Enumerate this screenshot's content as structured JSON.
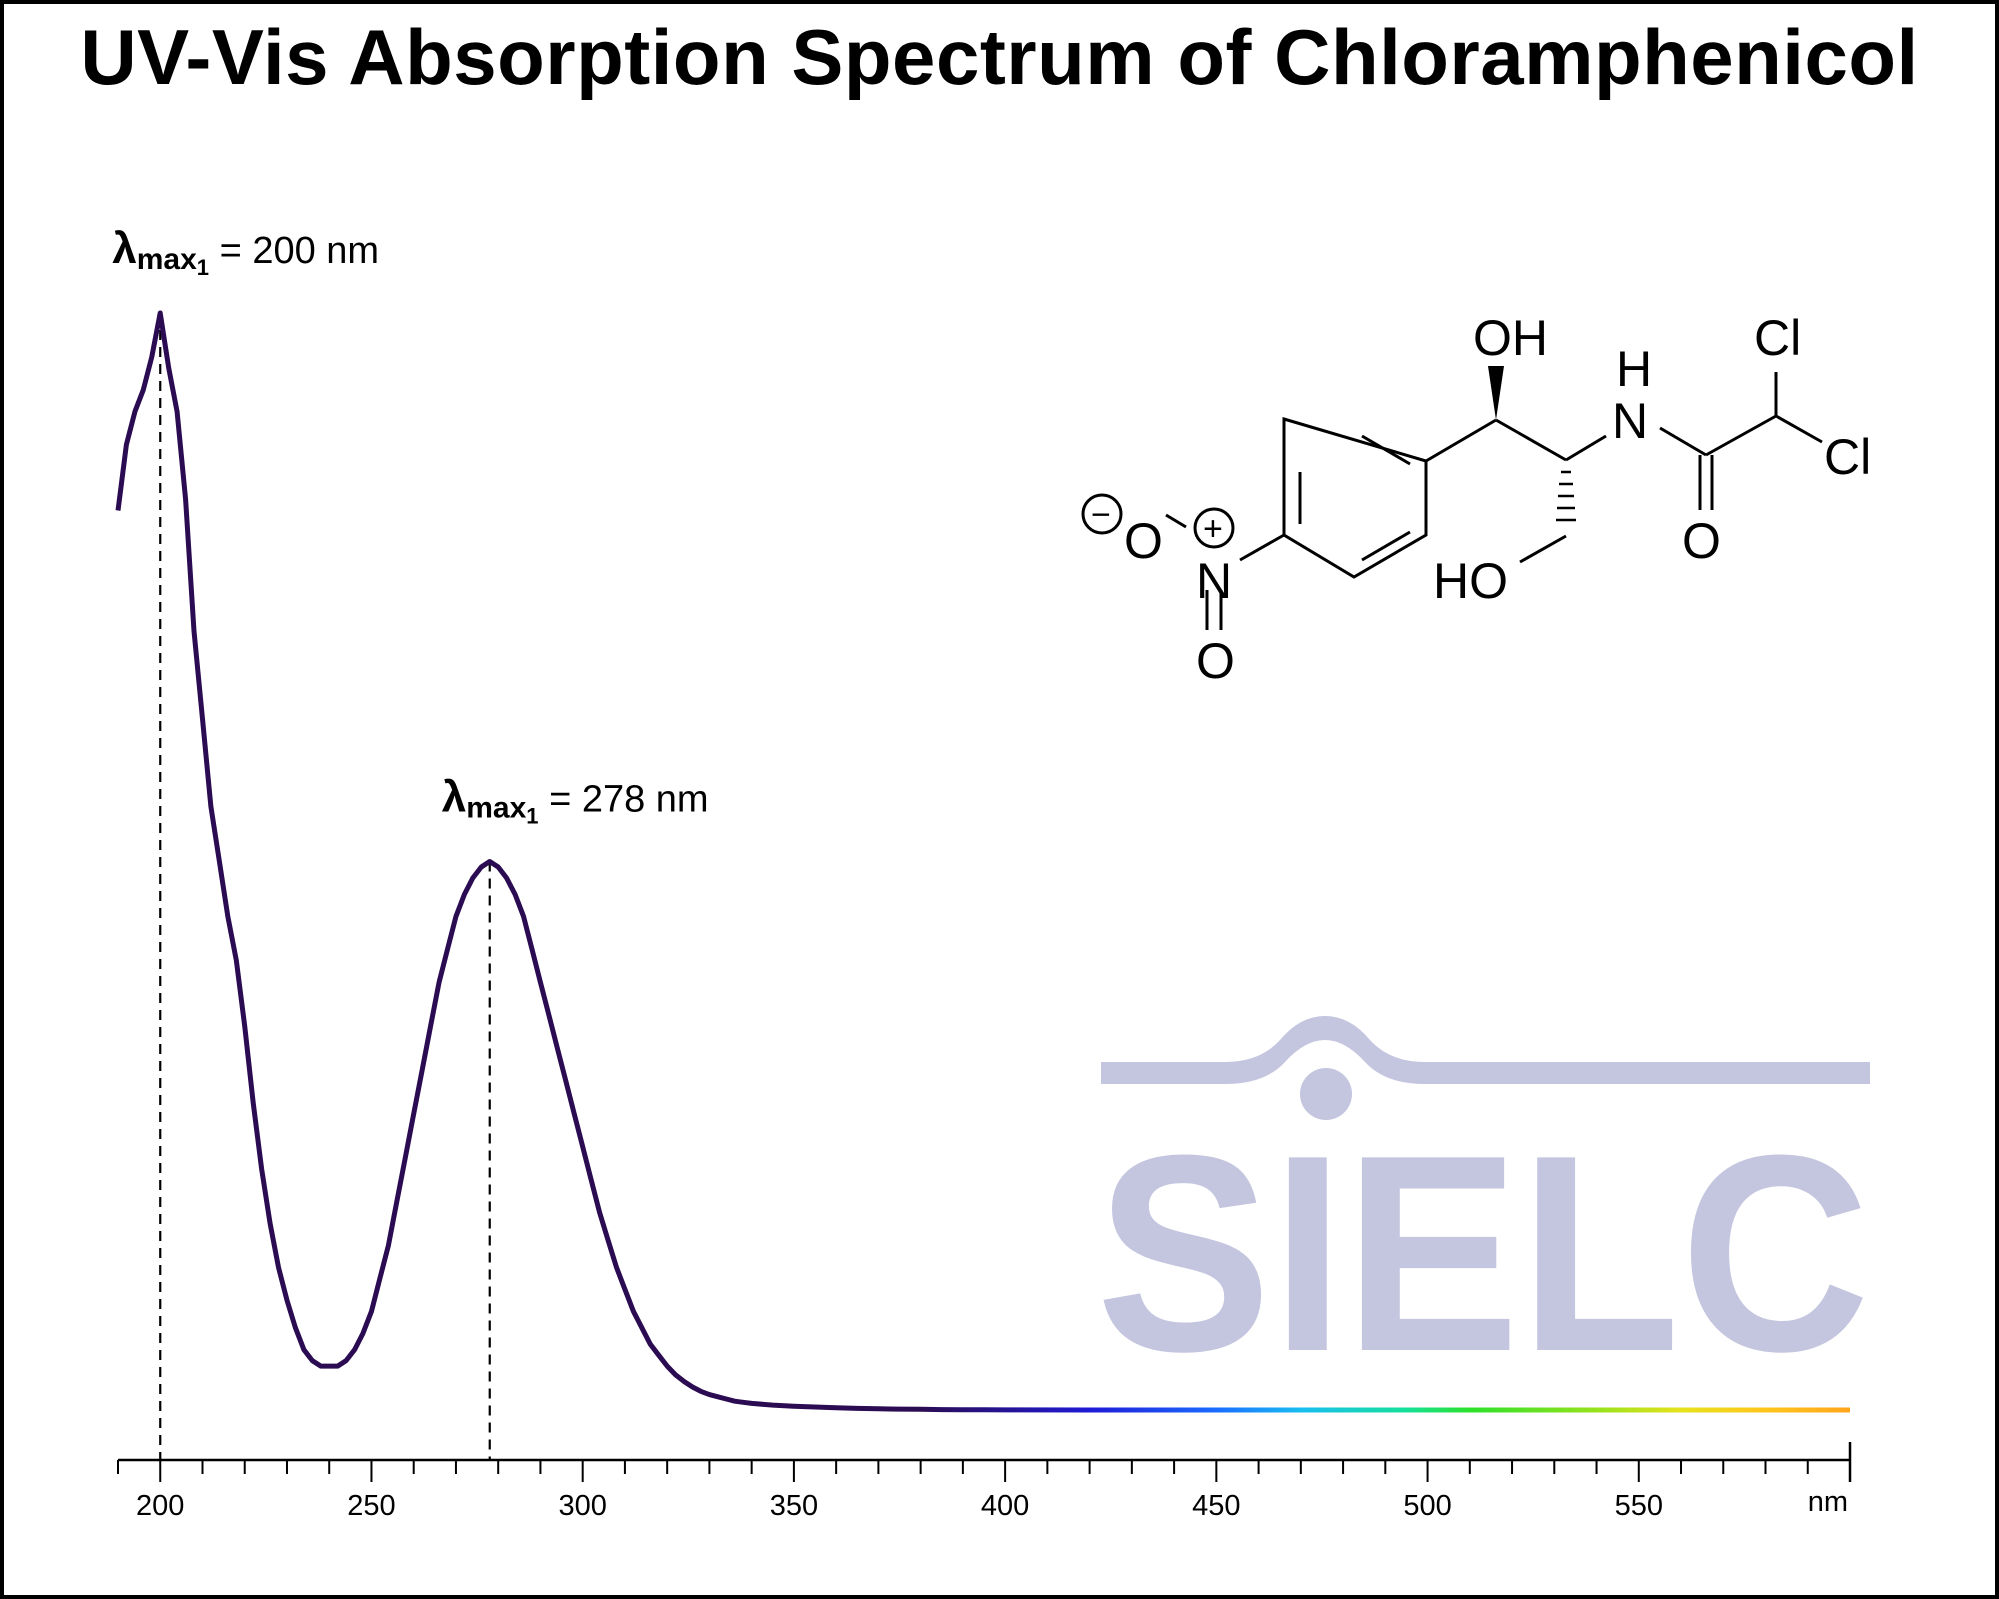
{
  "chart_data": {
    "type": "line",
    "title": "UV-Vis Absorption Spectrum of Chloramphenicol",
    "xlabel": "nm",
    "ylabel": "",
    "xlim": [
      190,
      600
    ],
    "ylim": [
      0,
      1.0
    ],
    "x_ticks": [
      200,
      250,
      300,
      350,
      400,
      450,
      500,
      550
    ],
    "y_axis_visible": false,
    "grid": false,
    "series": [
      {
        "x": [
          190,
          192,
          194,
          196,
          198,
          200,
          202,
          204,
          206,
          208,
          210,
          212,
          214,
          216,
          218,
          220,
          222,
          224,
          226,
          228,
          230,
          232,
          234,
          236,
          238,
          240,
          242,
          244,
          246,
          248,
          250,
          252,
          254,
          256,
          258,
          260,
          262,
          264,
          266,
          268,
          270,
          272,
          274,
          276,
          278,
          280,
          282,
          284,
          286,
          288,
          290,
          292,
          294,
          296,
          298,
          300,
          302,
          304,
          306,
          308,
          310,
          312,
          314,
          316,
          318,
          320,
          322,
          324,
          326,
          328,
          330,
          332,
          334,
          336,
          338,
          340,
          345,
          350,
          355,
          360,
          365,
          370,
          375,
          380,
          385,
          390,
          395,
          400,
          420,
          450,
          500,
          550,
          600
        ],
        "y": [
          0.82,
          0.88,
          0.91,
          0.93,
          0.96,
          1.0,
          0.95,
          0.91,
          0.83,
          0.71,
          0.63,
          0.55,
          0.5,
          0.45,
          0.41,
          0.35,
          0.28,
          0.22,
          0.17,
          0.13,
          0.1,
          0.075,
          0.055,
          0.045,
          0.04,
          0.04,
          0.04,
          0.045,
          0.055,
          0.07,
          0.09,
          0.12,
          0.15,
          0.19,
          0.23,
          0.27,
          0.31,
          0.35,
          0.39,
          0.42,
          0.45,
          0.47,
          0.485,
          0.495,
          0.5,
          0.495,
          0.485,
          0.47,
          0.45,
          0.42,
          0.39,
          0.36,
          0.33,
          0.3,
          0.27,
          0.24,
          0.21,
          0.18,
          0.155,
          0.13,
          0.11,
          0.09,
          0.075,
          0.06,
          0.05,
          0.04,
          0.032,
          0.026,
          0.021,
          0.017,
          0.014,
          0.012,
          0.01,
          0.008,
          0.007,
          0.006,
          0.0045,
          0.0035,
          0.0027,
          0.002,
          0.0015,
          0.0011,
          0.0008,
          0.0006,
          0.0004,
          0.0003,
          0.0002,
          0.0001,
          0,
          0,
          0,
          0,
          0
        ]
      }
    ],
    "line_gradient_stops": [
      {
        "nm": 380,
        "color": "#2b0c52"
      },
      {
        "nm": 420,
        "color": "#1f1ad6"
      },
      {
        "nm": 450,
        "color": "#1a6cff"
      },
      {
        "nm": 470,
        "color": "#19bdf0"
      },
      {
        "nm": 495,
        "color": "#15e09a"
      },
      {
        "nm": 510,
        "color": "#2ce02a"
      },
      {
        "nm": 540,
        "color": "#97e21c"
      },
      {
        "nm": 560,
        "color": "#e6e21c"
      },
      {
        "nm": 580,
        "color": "#ffc51c"
      },
      {
        "nm": 600,
        "color": "#ffa51c"
      }
    ],
    "curve_color": "#2b0c52",
    "annotations": [
      {
        "wavelength": 200,
        "lambda": "λ",
        "sub": "max",
        "subsub": "1",
        "text": " = 200 nm"
      },
      {
        "wavelength": 278,
        "lambda": "λ",
        "sub": "max",
        "subsub": "1",
        "text": " = 278 nm"
      }
    ]
  },
  "structure": {
    "oh_top": "OH",
    "h_top": "H",
    "n_amide": "N",
    "cl_top": "Cl",
    "cl_right": "Cl",
    "o_amide": "O",
    "ho_bottom": "HO",
    "o_minus": "O",
    "n_plus": "N",
    "o_double": "O",
    "minus": "−",
    "plus": "+"
  },
  "watermark": {
    "text": "SIELC",
    "color": "#c4c5df"
  }
}
